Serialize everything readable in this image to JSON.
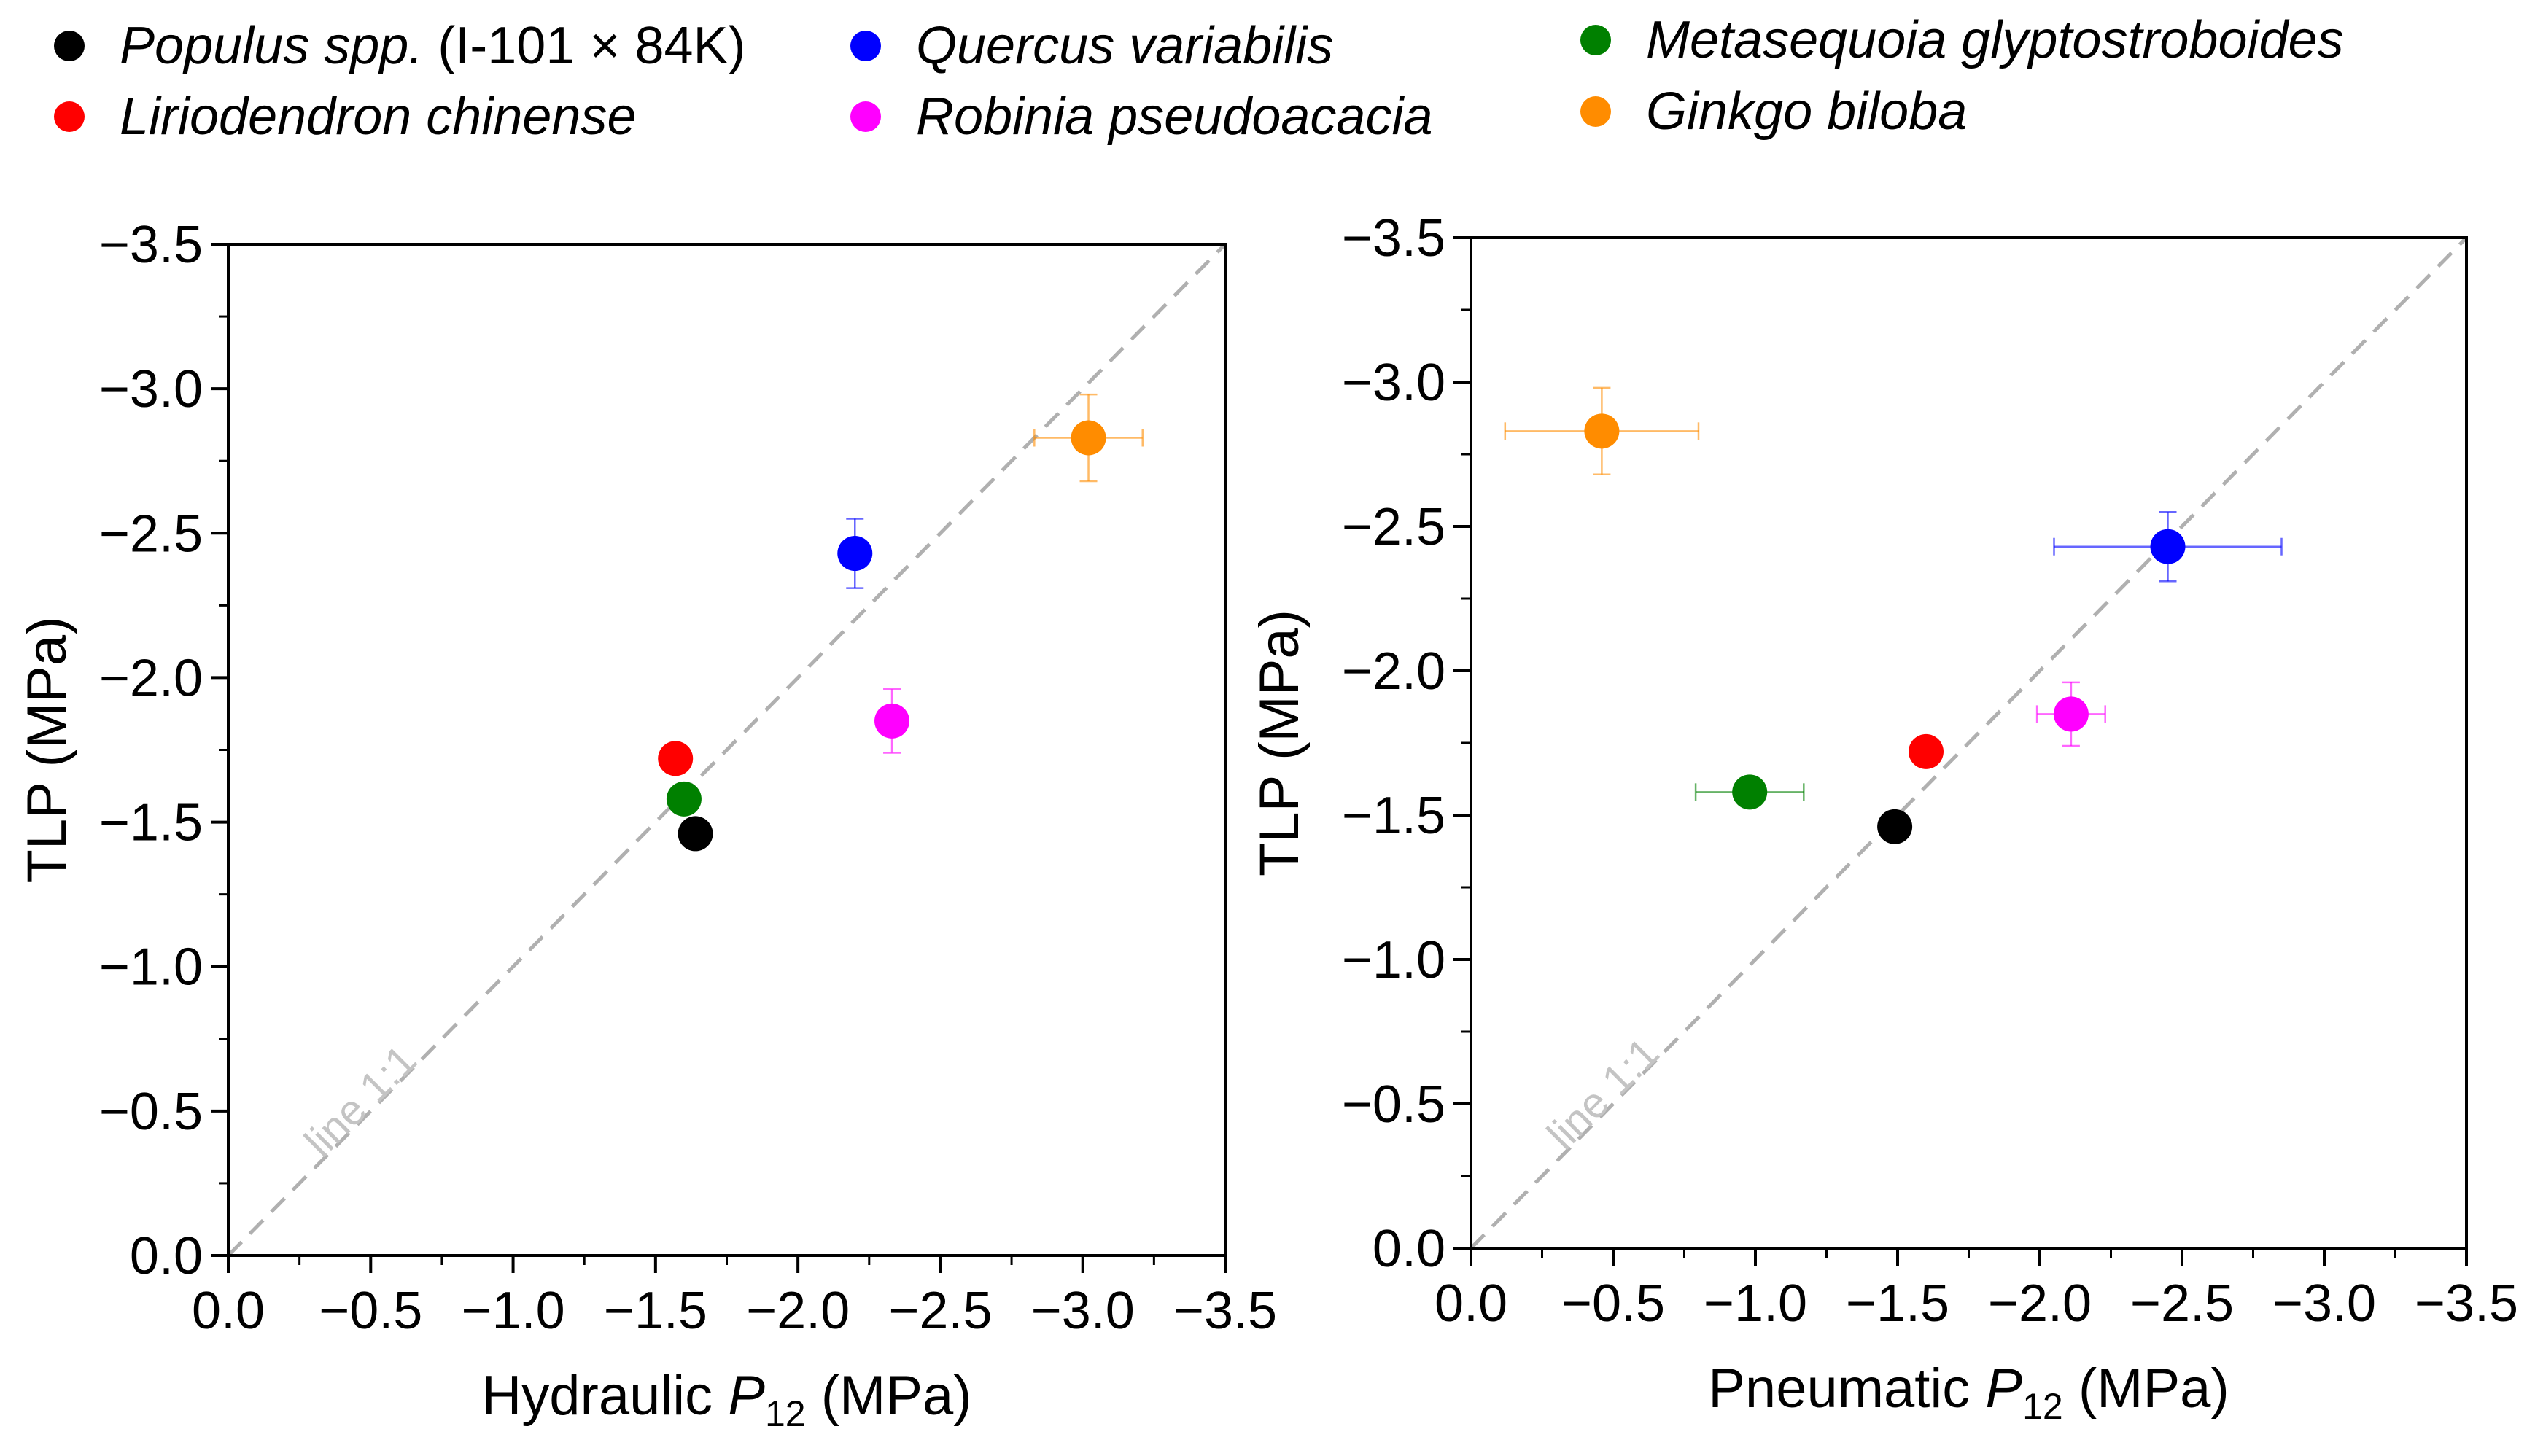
{
  "legend": [
    {
      "name": "Populus spp.",
      "suffix": " (I-101 × 84K)",
      "color": "#000000"
    },
    {
      "name": "Quercus variabilis",
      "suffix": "",
      "color": "#0000ff"
    },
    {
      "name": "Metasequoia glyptostroboides",
      "suffix": "",
      "color": "#008000"
    },
    {
      "name": "Liriodendron chinense",
      "suffix": "",
      "color": "#ff0000"
    },
    {
      "name": "Robinia pseudoacacia",
      "suffix": "",
      "color": "#ff00ff"
    },
    {
      "name": "Ginkgo biloba",
      "suffix": "",
      "color": "#ff8c00"
    }
  ],
  "chart_data": [
    {
      "type": "scatter",
      "title": "",
      "xlabel": "Hydraulic P12 (MPa)",
      "xlabel_main": "Hydraulic ",
      "xlabel_var": "P",
      "xlabel_sub": "12",
      "xlabel_unit": " (MPa)",
      "ylabel": "TLP (MPa)",
      "xlim": [
        0.0,
        -3.5
      ],
      "ylim": [
        0.0,
        -3.5
      ],
      "ticks": [
        0.0,
        -0.5,
        -1.0,
        -1.5,
        -2.0,
        -2.5,
        -3.0,
        -3.5
      ],
      "tick_labels": [
        "0.0",
        "−0.5",
        "−1.0",
        "−1.5",
        "−2.0",
        "−2.5",
        "−3.0",
        "−3.5"
      ],
      "reference_line": {
        "label": "line 1:1",
        "slope": 1
      },
      "series": [
        {
          "name": "Populus spp. (I-101 × 84K)",
          "color": "#000000",
          "x": -1.64,
          "y": -1.46,
          "xerr": 0.0,
          "yerr": 0.0
        },
        {
          "name": "Liriodendron chinense",
          "color": "#ff0000",
          "x": -1.57,
          "y": -1.72,
          "xerr": 0.0,
          "yerr": 0.0
        },
        {
          "name": "Metasequoia glyptostroboides",
          "color": "#008000",
          "x": -1.6,
          "y": -1.58,
          "xerr": 0.0,
          "yerr": 0.0
        },
        {
          "name": "Quercus variabilis",
          "color": "#0000ff",
          "x": -2.2,
          "y": -2.43,
          "xerr": 0.0,
          "yerr": 0.12
        },
        {
          "name": "Robinia pseudoacacia",
          "color": "#ff00ff",
          "x": -2.33,
          "y": -1.85,
          "xerr": 0.0,
          "yerr": 0.11
        },
        {
          "name": "Ginkgo biloba",
          "color": "#ff8c00",
          "x": -3.02,
          "y": -2.83,
          "xerr": 0.19,
          "yerr": 0.15
        }
      ]
    },
    {
      "type": "scatter",
      "title": "",
      "xlabel": "Pneumatic P12 (MPa)",
      "xlabel_main": "Pneumatic ",
      "xlabel_var": "P",
      "xlabel_sub": "12",
      "xlabel_unit": " (MPa)",
      "ylabel": "TLP (MPa)",
      "xlim": [
        0.0,
        -3.5
      ],
      "ylim": [
        0.0,
        -3.5
      ],
      "ticks": [
        0.0,
        -0.5,
        -1.0,
        -1.5,
        -2.0,
        -2.5,
        -3.0,
        -3.5
      ],
      "tick_labels": [
        "0.0",
        "−0.5",
        "−1.0",
        "−1.5",
        "−2.0",
        "−2.5",
        "−3.0",
        "−3.5"
      ],
      "reference_line": {
        "label": "line 1:1",
        "slope": 1
      },
      "series": [
        {
          "name": "Populus spp. (I-101 × 84K)",
          "color": "#000000",
          "x": -1.49,
          "y": -1.46,
          "xerr": 0.0,
          "yerr": 0.0
        },
        {
          "name": "Liriodendron chinense",
          "color": "#ff0000",
          "x": -1.6,
          "y": -1.72,
          "xerr": 0.0,
          "yerr": 0.0
        },
        {
          "name": "Metasequoia glyptostroboides",
          "color": "#008000",
          "x": -0.98,
          "y": -1.58,
          "xerr": 0.19,
          "yerr": 0.0
        },
        {
          "name": "Quercus variabilis",
          "color": "#0000ff",
          "x": -2.45,
          "y": -2.43,
          "xerr": 0.4,
          "yerr": 0.12
        },
        {
          "name": "Robinia pseudoacacia",
          "color": "#ff00ff",
          "x": -2.11,
          "y": -1.85,
          "xerr": 0.12,
          "yerr": 0.11
        },
        {
          "name": "Ginkgo biloba",
          "color": "#ff8c00",
          "x": -0.46,
          "y": -2.83,
          "xerr": 0.34,
          "yerr": 0.15
        }
      ]
    }
  ]
}
